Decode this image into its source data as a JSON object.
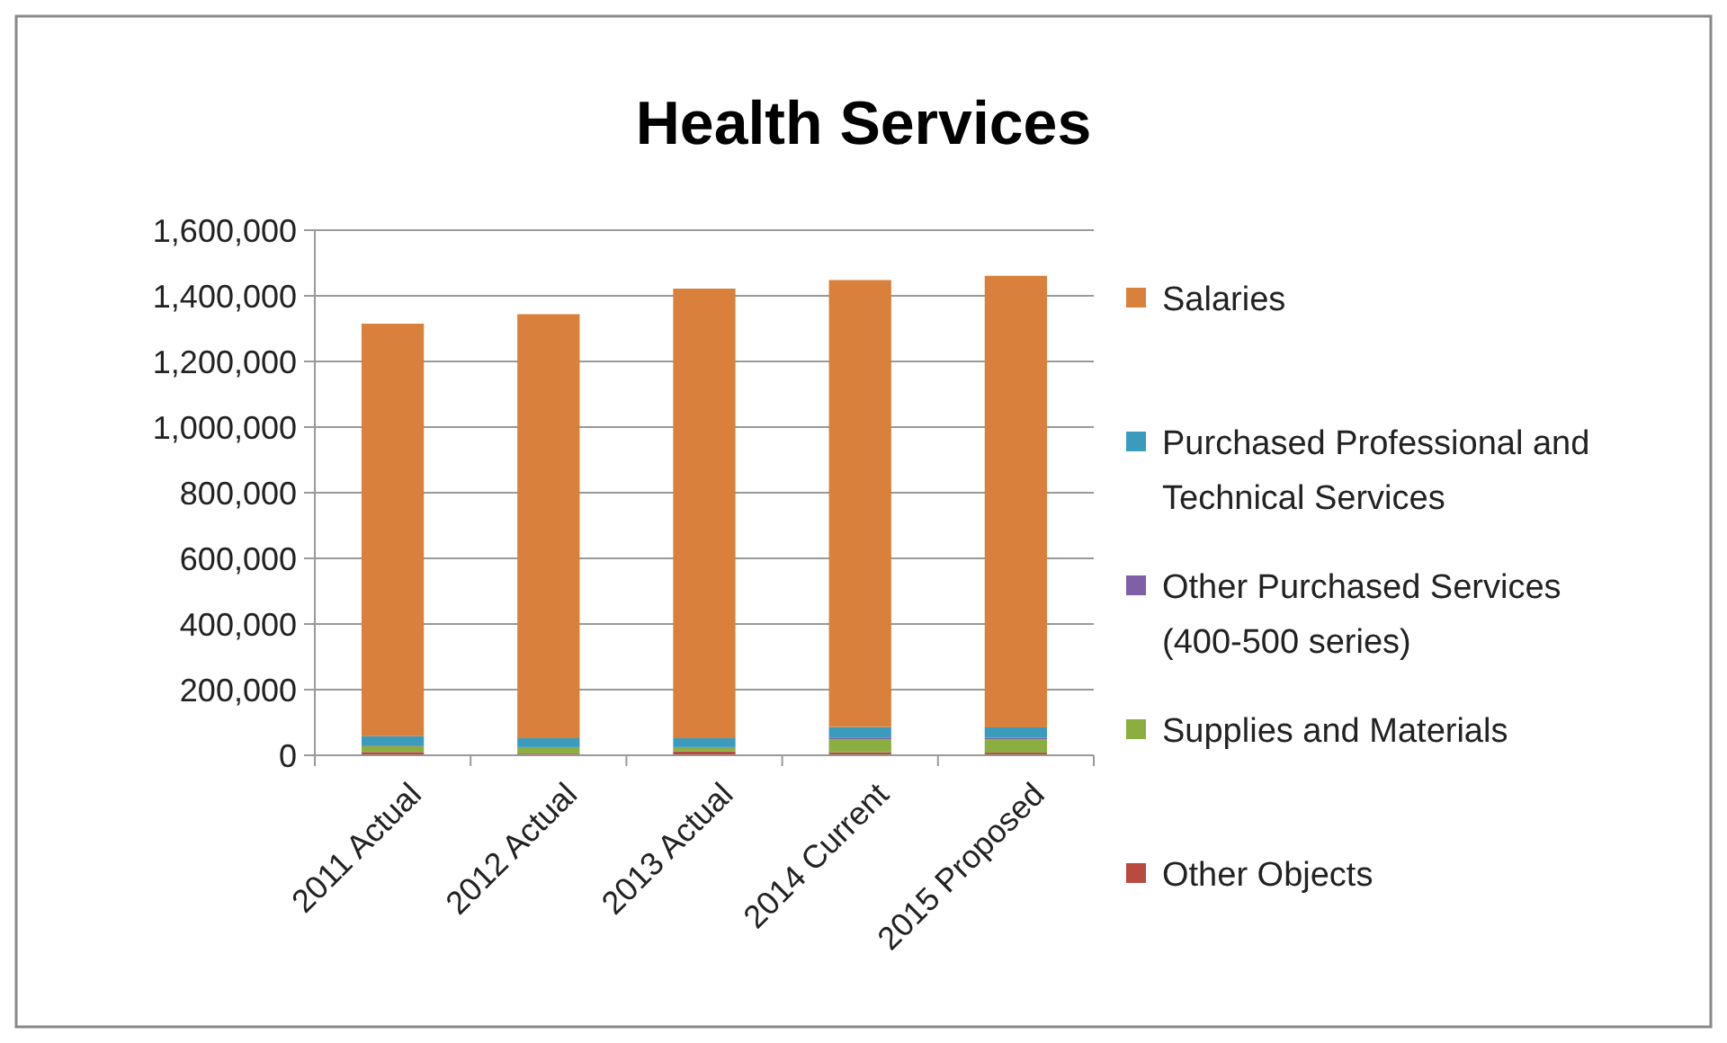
{
  "chart_data": {
    "type": "bar",
    "title": "Health Services",
    "stacked": true,
    "categories": [
      "2011 Actual",
      "2012 Actual",
      "2013 Actual",
      "2014 Current",
      "2015 Proposed"
    ],
    "series": [
      {
        "name": "Other Objects",
        "color": "#b94a3f",
        "values": [
          10000,
          5000,
          12000,
          9000,
          8000
        ]
      },
      {
        "name": "Supplies and Materials",
        "color": "#8aae3f",
        "values": [
          18000,
          18000,
          11000,
          40000,
          40000
        ]
      },
      {
        "name": "Other Purchased Services (400-500 series)",
        "color": "#7f5fa6",
        "values": [
          2000,
          2000,
          2000,
          5000,
          5000
        ]
      },
      {
        "name": "Purchased Professional and Technical Services",
        "color": "#3b9bbd",
        "values": [
          28000,
          27000,
          27000,
          32000,
          32000
        ]
      },
      {
        "name": "Salaries",
        "color": "#d9813c",
        "values": [
          1257000,
          1292000,
          1370000,
          1362000,
          1376000
        ]
      }
    ],
    "ylim": [
      0,
      1600000
    ],
    "yticks": [
      {
        "value": 0,
        "label": "0"
      },
      {
        "value": 200000,
        "label": "200,000"
      },
      {
        "value": 400000,
        "label": "400,000"
      },
      {
        "value": 600000,
        "label": "600,000"
      },
      {
        "value": 800000,
        "label": "800,000"
      },
      {
        "value": 1000000,
        "label": "1,000,000"
      },
      {
        "value": 1200000,
        "label": "1,200,000"
      },
      {
        "value": 1400000,
        "label": "1,400,000"
      },
      {
        "value": 1600000,
        "label": "1,600,000"
      }
    ],
    "grid": "y",
    "legend": "right"
  }
}
